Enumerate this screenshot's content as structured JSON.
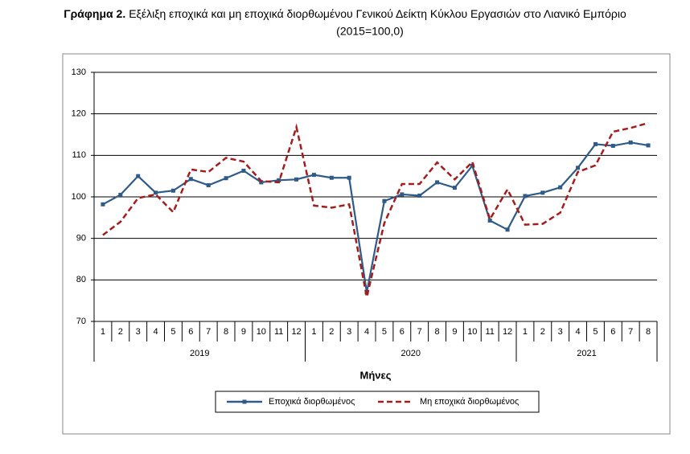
{
  "chart_data": {
    "type": "line",
    "title": {
      "label": "Γράφημα 2.",
      "text": "Εξέλιξη εποχικά και μη εποχικά διορθωμένου Γενικού Δείκτη Κύκλου Εργασιών στο Λιανικό Εμπόριο"
    },
    "subtitle": "(2015=100,0)",
    "x_label": "Μήνες",
    "categories": [
      "1",
      "2",
      "3",
      "4",
      "5",
      "6",
      "7",
      "8",
      "9",
      "10",
      "11",
      "12",
      "1",
      "2",
      "3",
      "4",
      "5",
      "6",
      "7",
      "8",
      "9",
      "10",
      "11",
      "12",
      "1",
      "2",
      "3",
      "4",
      "5",
      "6",
      "7",
      "8"
    ],
    "groups": [
      {
        "label": "2019",
        "count": 12
      },
      {
        "label": "2020",
        "count": 12
      },
      {
        "label": "2021",
        "count": 8
      }
    ],
    "series": [
      {
        "name": "Εποχικά διορθωμένος",
        "color": "#2e5b87",
        "dashed": false,
        "values": [
          98.2,
          100.5,
          105,
          101,
          101.5,
          104.3,
          102.8,
          104.5,
          106.3,
          103.5,
          104,
          104.2,
          105.3,
          104.6,
          104.6,
          77,
          99,
          100.6,
          100.3,
          103.5,
          102.2,
          107.5,
          94.3,
          92.1,
          100.2,
          101,
          102.3,
          107,
          112.7,
          112.3,
          113.1,
          112.4
        ]
      },
      {
        "name": "Μη εποχικά διορθωμένος",
        "color": "#a31d1d",
        "dashed": true,
        "values": [
          90.8,
          94,
          99.7,
          100.6,
          96.3,
          106.6,
          106,
          109.4,
          108.5,
          103.8,
          103.5,
          116.8,
          97.9,
          97.4,
          98.2,
          75.9,
          93.7,
          103.1,
          103.1,
          108.3,
          104.2,
          108.4,
          94.6,
          101.8,
          93.3,
          93.5,
          96.2,
          106,
          107.6,
          115.7,
          116.6,
          117.8
        ]
      }
    ],
    "ylim": [
      70,
      130
    ],
    "yticks": [
      70,
      80,
      90,
      100,
      110,
      120,
      130
    ],
    "grid": true,
    "legend": "bottom"
  }
}
